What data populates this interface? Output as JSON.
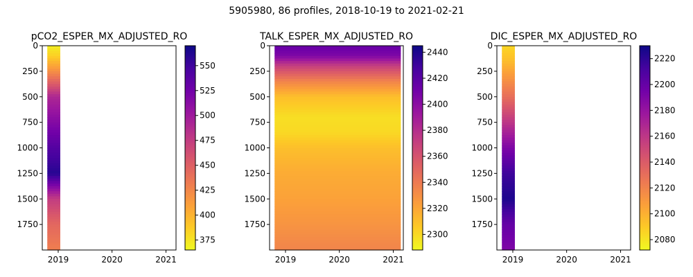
{
  "figure_title": "5905980, 86 profiles, 2018-10-19 to 2021-02-21",
  "colormap": [
    "#f0f921",
    "#fdca26",
    "#fb9f3a",
    "#ed7953",
    "#d8576b",
    "#bd3786",
    "#9c179e",
    "#7201a8",
    "#46039f",
    "#0d0887"
  ],
  "chart_data": [
    {
      "type": "heatmap",
      "title": "pCO2_ESPER_MX_ADJUSTED_RO",
      "x_ticks": [
        "2019",
        "2020",
        "2021"
      ],
      "y_ticks": [
        "0",
        "250",
        "500",
        "750",
        "1000",
        "1250",
        "1500",
        "1750"
      ],
      "yaxis": "inverted",
      "ylim": [
        2000,
        0
      ],
      "colorbar_ticks": [
        "375",
        "400",
        "425",
        "450",
        "475",
        "500",
        "525",
        "550"
      ],
      "colorbar_range": [
        365,
        570
      ],
      "data_time_extent": [
        "2018-10-19",
        "2019-01-15"
      ],
      "depth_profile": [
        {
          "depth": 0,
          "value": 370
        },
        {
          "depth": 100,
          "value": 385
        },
        {
          "depth": 250,
          "value": 420
        },
        {
          "depth": 400,
          "value": 460
        },
        {
          "depth": 500,
          "value": 490
        },
        {
          "depth": 750,
          "value": 515
        },
        {
          "depth": 1000,
          "value": 540
        },
        {
          "depth": 1250,
          "value": 560
        },
        {
          "depth": 1500,
          "value": 475
        },
        {
          "depth": 1750,
          "value": 445
        },
        {
          "depth": 2000,
          "value": 430
        }
      ]
    },
    {
      "type": "heatmap",
      "title": "TALK_ESPER_MX_ADJUSTED_RO",
      "x_ticks": [
        "2019",
        "2020",
        "2021"
      ],
      "y_ticks": [
        "0",
        "250",
        "500",
        "750",
        "1000",
        "1250",
        "1500",
        "1750"
      ],
      "yaxis": "inverted",
      "ylim": [
        2000,
        0
      ],
      "colorbar_ticks": [
        "2300",
        "2320",
        "2340",
        "2360",
        "2380",
        "2400",
        "2420",
        "2440"
      ],
      "colorbar_range": [
        2288,
        2445
      ],
      "data_time_extent": [
        "2018-10-19",
        "2021-02-21"
      ],
      "depth_profile": [
        {
          "depth": 0,
          "value": 2415
        },
        {
          "depth": 100,
          "value": 2405
        },
        {
          "depth": 200,
          "value": 2370
        },
        {
          "depth": 350,
          "value": 2335
        },
        {
          "depth": 500,
          "value": 2310
        },
        {
          "depth": 700,
          "value": 2298
        },
        {
          "depth": 850,
          "value": 2300
        },
        {
          "depth": 1000,
          "value": 2310
        },
        {
          "depth": 1250,
          "value": 2318
        },
        {
          "depth": 1500,
          "value": 2322
        },
        {
          "depth": 1750,
          "value": 2328
        },
        {
          "depth": 2000,
          "value": 2335
        }
      ]
    },
    {
      "type": "heatmap",
      "title": "DIC_ESPER_MX_ADJUSTED_RO",
      "x_ticks": [
        "2019",
        "2020",
        "2021"
      ],
      "y_ticks": [
        "0",
        "250",
        "500",
        "750",
        "1000",
        "1250",
        "1500",
        "1750"
      ],
      "yaxis": "inverted",
      "ylim": [
        2000,
        0
      ],
      "colorbar_ticks": [
        "2080",
        "2100",
        "2120",
        "2140",
        "2160",
        "2180",
        "2200",
        "2220"
      ],
      "colorbar_range": [
        2072,
        2230
      ],
      "data_time_extent": [
        "2018-10-19",
        "2019-01-15"
      ],
      "depth_profile": [
        {
          "depth": 0,
          "value": 2085
        },
        {
          "depth": 150,
          "value": 2095
        },
        {
          "depth": 300,
          "value": 2110
        },
        {
          "depth": 500,
          "value": 2130
        },
        {
          "depth": 750,
          "value": 2160
        },
        {
          "depth": 1000,
          "value": 2190
        },
        {
          "depth": 1250,
          "value": 2215
        },
        {
          "depth": 1500,
          "value": 2225
        },
        {
          "depth": 1750,
          "value": 2200
        },
        {
          "depth": 2000,
          "value": 2190
        }
      ]
    }
  ]
}
